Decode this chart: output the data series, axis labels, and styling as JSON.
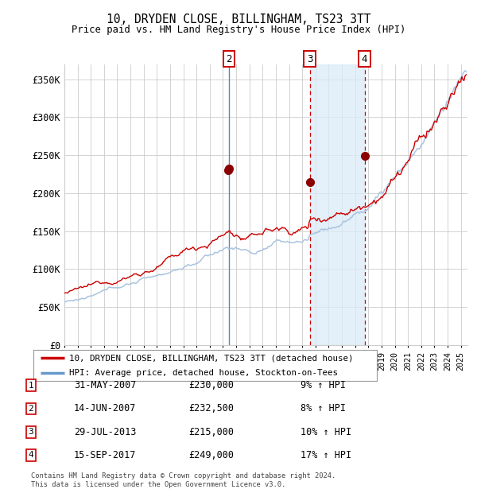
{
  "title": "10, DRYDEN CLOSE, BILLINGHAM, TS23 3TT",
  "subtitle": "Price paid vs. HM Land Registry's House Price Index (HPI)",
  "x_start_year": 1995,
  "x_end_year": 2025,
  "y_min": 0,
  "y_max": 370000,
  "y_ticks": [
    0,
    50000,
    100000,
    150000,
    200000,
    250000,
    300000,
    350000
  ],
  "y_tick_labels": [
    "£0",
    "£50K",
    "£100K",
    "£150K",
    "£200K",
    "£250K",
    "£300K",
    "£350K"
  ],
  "transactions": [
    {
      "id": 1,
      "date": "31-MAY-2007",
      "price": 230000,
      "hpi_pct": "9%",
      "label": "1"
    },
    {
      "id": 2,
      "date": "14-JUN-2007",
      "price": 232500,
      "hpi_pct": "8%",
      "label": "2"
    },
    {
      "id": 3,
      "date": "29-JUL-2013",
      "price": 215000,
      "hpi_pct": "10%",
      "label": "3"
    },
    {
      "id": 4,
      "date": "15-SEP-2017",
      "price": 249000,
      "hpi_pct": "17%",
      "label": "4"
    }
  ],
  "trans_years": [
    2007.37,
    2007.45,
    2013.56,
    2017.71
  ],
  "trans_prices": [
    230000,
    232500,
    215000,
    249000
  ],
  "trans_labels": [
    "1",
    "2",
    "3",
    "4"
  ],
  "shaded_region": [
    2013.56,
    2017.71
  ],
  "vline2_solid_blue": 2007.45,
  "vline3_dashed_red": 2013.56,
  "vline4_dashed_red": 2017.71,
  "hpi_line_color": "#aac4df",
  "price_line_color": "#cc0000",
  "marker_color": "#8b0000",
  "background_color": "#ffffff",
  "grid_color": "#cccccc",
  "footer_text": "Contains HM Land Registry data © Crown copyright and database right 2024.\nThis data is licensed under the Open Government Licence v3.0.",
  "legend1_label": "10, DRYDEN CLOSE, BILLINGHAM, TS23 3TT (detached house)",
  "legend2_label": "HPI: Average price, detached house, Stockton-on-Tees"
}
